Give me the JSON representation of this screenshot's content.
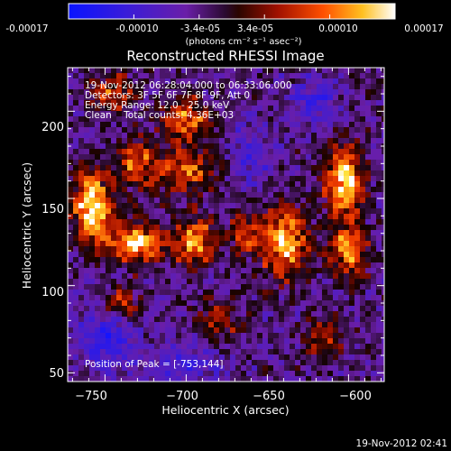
{
  "colorbar": {
    "tick_labels": [
      "-0.00017",
      "-0.00010",
      "-3.4e-05",
      "3.4e-05",
      "0.00010",
      "0.00017"
    ],
    "unit_label": "(photons cm⁻² s⁻¹ asec⁻²)",
    "range": [
      -0.00017,
      0.00017
    ]
  },
  "title": "Reconstructed RHESSI Image",
  "info": {
    "time_range": "19-Nov-2012 06:28:04.000 to 06:33:06.000",
    "detectors": "Detectors: 3F 5F 6F 7F 8F 9F, Att 0",
    "energy": "Energy Range: 12.0 - 25.0 keV",
    "clean": "Clean    Total counts: 4.36E+03"
  },
  "peak_label": "Position of Peak = [-753,144]",
  "footer_timestamp": "19-Nov-2012 02:41",
  "chart_data": {
    "type": "heatmap",
    "title": "Reconstructed RHESSI Image",
    "xlabel": "Heliocentric X (arcsec)",
    "ylabel": "Heliocentric Y (arcsec)",
    "xlim": [
      -773,
      -578
    ],
    "ylim": [
      45,
      225
    ],
    "x_ticks": [
      -750,
      -700,
      -650,
      -600
    ],
    "x_tick_labels": [
      "−750",
      "−700",
      "−650",
      "−600"
    ],
    "y_ticks": [
      50,
      100,
      150,
      200
    ],
    "y_tick_labels": [
      "50",
      "100",
      "150",
      "200"
    ],
    "peak": [
      -753,
      144
    ],
    "bright_regions": [
      {
        "x": -758,
        "y": 145,
        "sx": 8,
        "sy": 14,
        "amp": 1.0
      },
      {
        "x": -730,
        "y": 125,
        "sx": 12,
        "sy": 8,
        "amp": 0.8
      },
      {
        "x": -730,
        "y": 170,
        "sx": 8,
        "sy": 10,
        "amp": 0.6
      },
      {
        "x": -700,
        "y": 195,
        "sx": 10,
        "sy": 8,
        "amp": 0.7
      },
      {
        "x": -700,
        "y": 165,
        "sx": 12,
        "sy": 8,
        "amp": 0.6
      },
      {
        "x": -695,
        "y": 125,
        "sx": 8,
        "sy": 10,
        "amp": 0.7
      },
      {
        "x": -665,
        "y": 130,
        "sx": 6,
        "sy": 8,
        "amp": 0.5
      },
      {
        "x": -640,
        "y": 125,
        "sx": 10,
        "sy": 14,
        "amp": 0.8
      },
      {
        "x": -603,
        "y": 160,
        "sx": 8,
        "sy": 14,
        "amp": 0.95
      },
      {
        "x": -600,
        "y": 120,
        "sx": 8,
        "sy": 10,
        "amp": 0.7
      },
      {
        "x": -740,
        "y": 90,
        "sx": 8,
        "sy": 6,
        "amp": 0.5
      },
      {
        "x": -745,
        "y": 210,
        "sx": 10,
        "sy": 8,
        "amp": 0.45
      },
      {
        "x": -615,
        "y": 70,
        "sx": 8,
        "sy": 8,
        "amp": 0.4
      },
      {
        "x": -680,
        "y": 80,
        "sx": 10,
        "sy": 8,
        "amp": 0.35
      }
    ],
    "dark_regions": [
      {
        "x": -750,
        "y": 70,
        "sx": 12,
        "sy": 12,
        "amp": 0.8
      },
      {
        "x": -700,
        "y": 55,
        "sx": 15,
        "sy": 8,
        "amp": 0.6
      },
      {
        "x": -620,
        "y": 205,
        "sx": 10,
        "sy": 10,
        "amp": 0.6
      },
      {
        "x": -660,
        "y": 175,
        "sx": 8,
        "sy": 12,
        "amp": 0.5
      }
    ],
    "grid": false
  }
}
